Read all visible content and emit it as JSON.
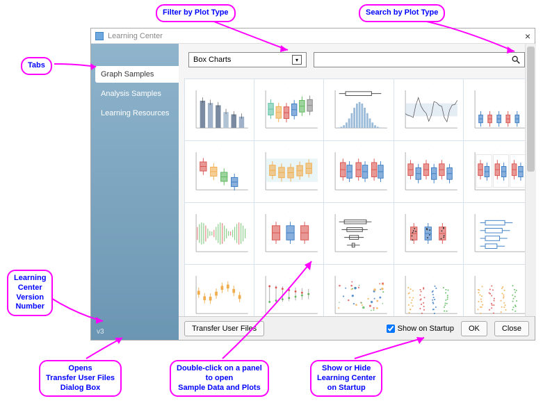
{
  "window": {
    "title": "Learning Center"
  },
  "sidebar": {
    "tabs": [
      {
        "label": "Graph Samples",
        "active": true
      },
      {
        "label": "Analysis Samples",
        "active": false
      },
      {
        "label": "Learning Resources",
        "active": false
      }
    ],
    "version": "v3"
  },
  "filters": {
    "select_value": "Box Charts",
    "search_value": ""
  },
  "footer": {
    "transfer": "Transfer User Files",
    "show_label": "Show on Startup",
    "show_checked": true,
    "ok": "OK",
    "close": "Close"
  },
  "callouts": {
    "tabs": "Tabs",
    "filter": "Filter by Plot Type",
    "search": "Search by Plot Type",
    "version": "Learning\nCenter\nVersion\nNumber",
    "transfer": "Opens\nTransfer User Files\nDialog Box",
    "panel": "Double-click on a panel\nto open\nSample Data and Plots",
    "startup": "Show or Hide\nLearning Center\non Startup"
  },
  "thumbs": {
    "rows": 4,
    "cols": 5,
    "palette": {
      "axis": "#999",
      "grid": "#e3e3e3",
      "blue": "#3b7cc4",
      "red": "#d9534f",
      "orange": "#f0ad4e",
      "teal": "#5bc0a0",
      "gray": "#888",
      "green": "#5cb85c",
      "dark": "#444"
    },
    "cells": [
      {
        "type": "bar",
        "colors": [
          "#7a8aa0",
          "#9fb2c9",
          "#7a8aa0",
          "#b0c4d6",
          "#7a8aa0",
          "#9fb2c9"
        ],
        "values": [
          60,
          55,
          50,
          35,
          30,
          25
        ]
      },
      {
        "type": "box",
        "series": [
          {
            "c": "#5bc0a0"
          },
          {
            "c": "#f0ad4e"
          },
          {
            "c": "#d9534f"
          },
          {
            "c": "#3b7cc4"
          },
          {
            "c": "#5cb85c"
          },
          {
            "c": "#888"
          }
        ]
      },
      {
        "type": "hist_box",
        "bar": "#9bbbd8",
        "line": "#444"
      },
      {
        "type": "line_band",
        "line": "#555",
        "band": "#c9d9ea"
      },
      {
        "type": "vbox_small",
        "colors": [
          "#3b7cc4",
          "#d9534f",
          "#3b7cc4",
          "#d9534f",
          "#3b7cc4"
        ]
      },
      {
        "type": "step_box",
        "colors": [
          "#d9534f",
          "#f0ad4e",
          "#5cb85c",
          "#3b7cc4"
        ]
      },
      {
        "type": "hbox_band",
        "c": "#f0ad4e",
        "band": "#d6ecf0"
      },
      {
        "type": "two_box",
        "colors": [
          "#d9534f",
          "#3b7cc4"
        ]
      },
      {
        "type": "grid_box",
        "colors": [
          "#d9534f",
          "#3b7cc4",
          "#d9534f",
          "#3b7cc4",
          "#d9534f",
          "#3b7cc4"
        ]
      },
      {
        "type": "panel_box",
        "colors": [
          "#d9534f",
          "#3b7cc4"
        ]
      },
      {
        "type": "dense_lines",
        "c": "#5cb85c",
        "c2": "#d9534f"
      },
      {
        "type": "three_box",
        "colors": [
          "#d9534f",
          "#3b7cc4",
          "#d9534f"
        ]
      },
      {
        "type": "hwhisker",
        "c": "#444"
      },
      {
        "type": "scatter_box",
        "c": "#d9534f",
        "c2": "#3b7cc4"
      },
      {
        "type": "open_box",
        "c": "#3b7cc4"
      },
      {
        "type": "hbox_err",
        "c": "#f0ad4e"
      },
      {
        "type": "point_range",
        "c1": "#d9534f",
        "c2": "#5cb85c"
      },
      {
        "type": "mixed_scatter",
        "colors": [
          "#d9534f",
          "#3b7cc4",
          "#5cb85c",
          "#f0ad4e"
        ]
      },
      {
        "type": "dot_columns",
        "colors": [
          "#f0ad4e",
          "#d9534f",
          "#3b7cc4",
          "#5cb85c"
        ]
      },
      {
        "type": "dot_columns",
        "colors": [
          "#f0ad4e",
          "#d9534f",
          "#f0ad4e",
          "#5cb85c"
        ]
      }
    ]
  }
}
